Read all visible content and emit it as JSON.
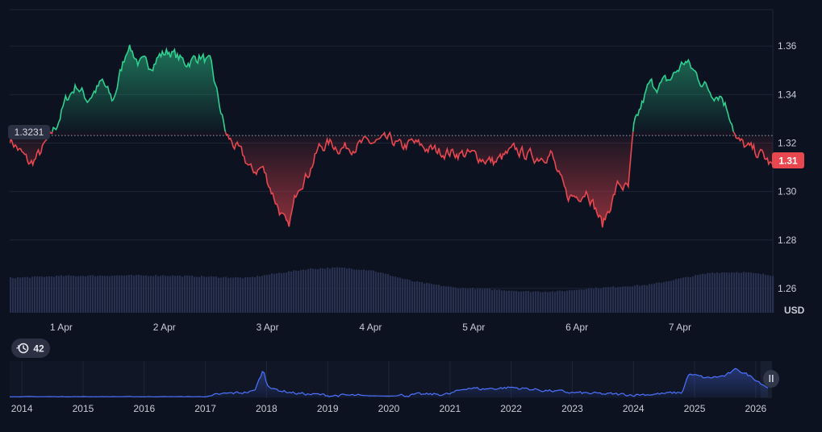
{
  "currency_label": "USD",
  "history_badge": {
    "icon": "history-icon",
    "count": "42"
  },
  "last_price_label": "1.31",
  "baseline_label": "1.3231",
  "colors": {
    "background": "#0d1220",
    "up": "#2ed08f",
    "down": "#e8474f",
    "volume": "#27304f",
    "navigator_line": "#4d72ff",
    "grid": "#1e2536",
    "axis_text": "#c8ccd6"
  },
  "chart_data": [
    {
      "type": "line",
      "title": "",
      "baseline": 1.3231,
      "ylim": [
        1.25,
        1.375
      ],
      "y_ticks": [
        "1.26",
        "1.28",
        "1.30",
        "1.32",
        "1.34",
        "1.36"
      ],
      "x_ticks": [
        "1 Apr",
        "2 Apr",
        "3 Apr",
        "4 Apr",
        "5 Apr",
        "6 Apr",
        "7 Apr"
      ],
      "x_range_days": [
        0.0,
        7.4
      ],
      "last_value": 1.31,
      "anchors_days": [
        0.0,
        0.2,
        0.3,
        0.45,
        0.55,
        0.65,
        0.75,
        0.9,
        1.0,
        1.15,
        1.25,
        1.35,
        1.45,
        1.55,
        1.7,
        1.85,
        1.95,
        2.1,
        2.2,
        2.3,
        2.35,
        2.45,
        2.6,
        2.7,
        2.8,
        2.9,
        3.0,
        3.1,
        3.2,
        3.5,
        3.7,
        3.8,
        3.9,
        4.1,
        4.3,
        4.5,
        4.7,
        4.9,
        5.1,
        5.25,
        5.3,
        5.4,
        5.5,
        5.6,
        5.75,
        5.9,
        6.0,
        6.05,
        6.1,
        6.2,
        6.3,
        6.4,
        6.55,
        6.7,
        6.8,
        6.9,
        7.0,
        7.05,
        7.15,
        7.3,
        7.4
      ],
      "anchors_values": [
        1.322,
        1.311,
        1.316,
        1.327,
        1.338,
        1.344,
        1.338,
        1.345,
        1.337,
        1.361,
        1.353,
        1.352,
        1.356,
        1.358,
        1.353,
        1.356,
        1.352,
        1.323,
        1.318,
        1.312,
        1.308,
        1.31,
        1.294,
        1.284,
        1.303,
        1.308,
        1.318,
        1.32,
        1.318,
        1.32,
        1.321,
        1.318,
        1.32,
        1.317,
        1.316,
        1.315,
        1.312,
        1.317,
        1.314,
        1.316,
        1.309,
        1.298,
        1.298,
        1.301,
        1.286,
        1.303,
        1.301,
        1.325,
        1.332,
        1.344,
        1.344,
        1.346,
        1.354,
        1.346,
        1.341,
        1.34,
        1.33,
        1.321,
        1.318,
        1.315,
        1.31
      ],
      "volume_ylim": [
        0,
        1
      ],
      "volume_anchors_days": [
        0.0,
        0.5,
        1.0,
        1.5,
        2.0,
        2.3,
        2.6,
        2.9,
        3.2,
        3.5,
        3.9,
        4.3,
        4.7,
        5.0,
        5.3,
        5.6,
        5.9,
        6.2,
        6.5,
        6.8,
        7.1,
        7.4
      ],
      "volume_anchors_values": [
        0.72,
        0.76,
        0.77,
        0.77,
        0.74,
        0.72,
        0.82,
        0.91,
        0.93,
        0.88,
        0.65,
        0.52,
        0.48,
        0.44,
        0.44,
        0.5,
        0.54,
        0.58,
        0.71,
        0.83,
        0.84,
        0.77
      ]
    },
    {
      "type": "area",
      "title": "",
      "x_ticks": [
        "2014",
        "2015",
        "2016",
        "2017",
        "2018",
        "2019",
        "2020",
        "2021",
        "2022",
        "2023",
        "2024",
        "2025",
        "2026"
      ],
      "x_range_years": [
        2013.8,
        2026.2
      ],
      "ylim": [
        0,
        1
      ],
      "anchors_years": [
        2013.8,
        2017.0,
        2017.3,
        2017.8,
        2017.95,
        2018.0,
        2018.1,
        2018.5,
        2019.0,
        2019.5,
        2020.0,
        2020.5,
        2021.0,
        2021.3,
        2021.5,
        2022.0,
        2022.5,
        2023.0,
        2023.5,
        2024.0,
        2024.5,
        2024.8,
        2024.9,
        2025.2,
        2025.5,
        2025.7,
        2026.0,
        2026.2
      ],
      "anchors_values": [
        0.02,
        0.02,
        0.1,
        0.18,
        0.85,
        0.45,
        0.25,
        0.12,
        0.06,
        0.05,
        0.04,
        0.08,
        0.1,
        0.3,
        0.25,
        0.3,
        0.22,
        0.14,
        0.1,
        0.08,
        0.11,
        0.15,
        0.7,
        0.58,
        0.65,
        0.85,
        0.55,
        0.3
      ]
    }
  ]
}
